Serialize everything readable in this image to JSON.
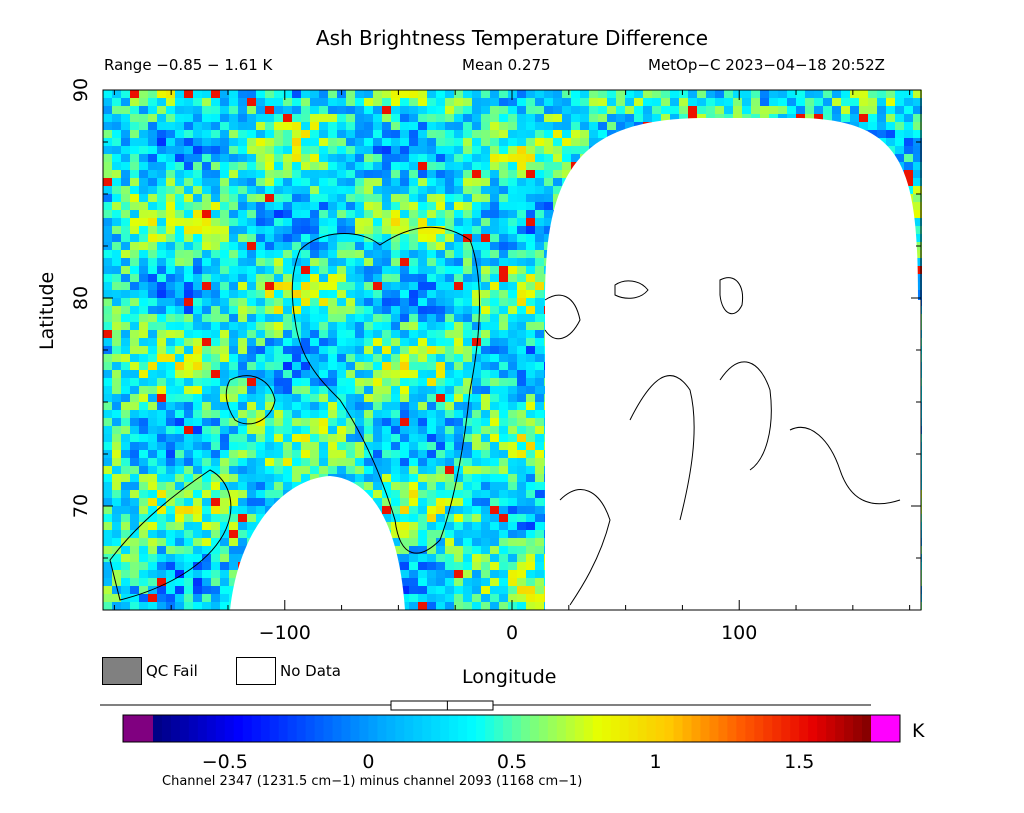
{
  "chart_data": {
    "type": "heatmap",
    "title": "Ash Brightness Temperature Difference",
    "subtitle_range": "Range −0.85 − 1.61 K",
    "subtitle_mean": "Mean 0.275",
    "subtitle_satellite": "MetOp−C 2023−04−18 20:52Z",
    "xlabel": "Longitude",
    "ylabel": "Latitude",
    "xlim": [
      -180,
      180
    ],
    "ylim": [
      65,
      90
    ],
    "xticks": [
      -100,
      0,
      100
    ],
    "xtick_labels": [
      "−100",
      "0",
      "100"
    ],
    "yticks": [
      70,
      80,
      90
    ],
    "ytick_labels": [
      "70",
      "80",
      "90"
    ],
    "colorbar": {
      "range": [
        -0.75,
        1.75
      ],
      "ticks": [
        -0.5,
        0,
        0.5,
        1,
        1.5
      ],
      "tick_labels": [
        "−0.5",
        "0",
        "0.5",
        "1",
        "1.5"
      ],
      "unit": "K",
      "caption": "Channel 2347 (1231.5 cm−1) minus channel 2093 (1168 cm−1)",
      "underflow_color": "#800080",
      "overflow_color": "#ff00ff",
      "range_marker": {
        "min": -0.85,
        "max": 1.61,
        "mean": 0.275
      }
    },
    "legend": {
      "qc_fail_label": "QC Fail",
      "qc_fail_color": "#808080",
      "no_data_label": "No Data",
      "no_data_color": "#ffffff"
    },
    "data_range": [
      -0.85,
      1.61
    ],
    "mean": 0.275
  }
}
